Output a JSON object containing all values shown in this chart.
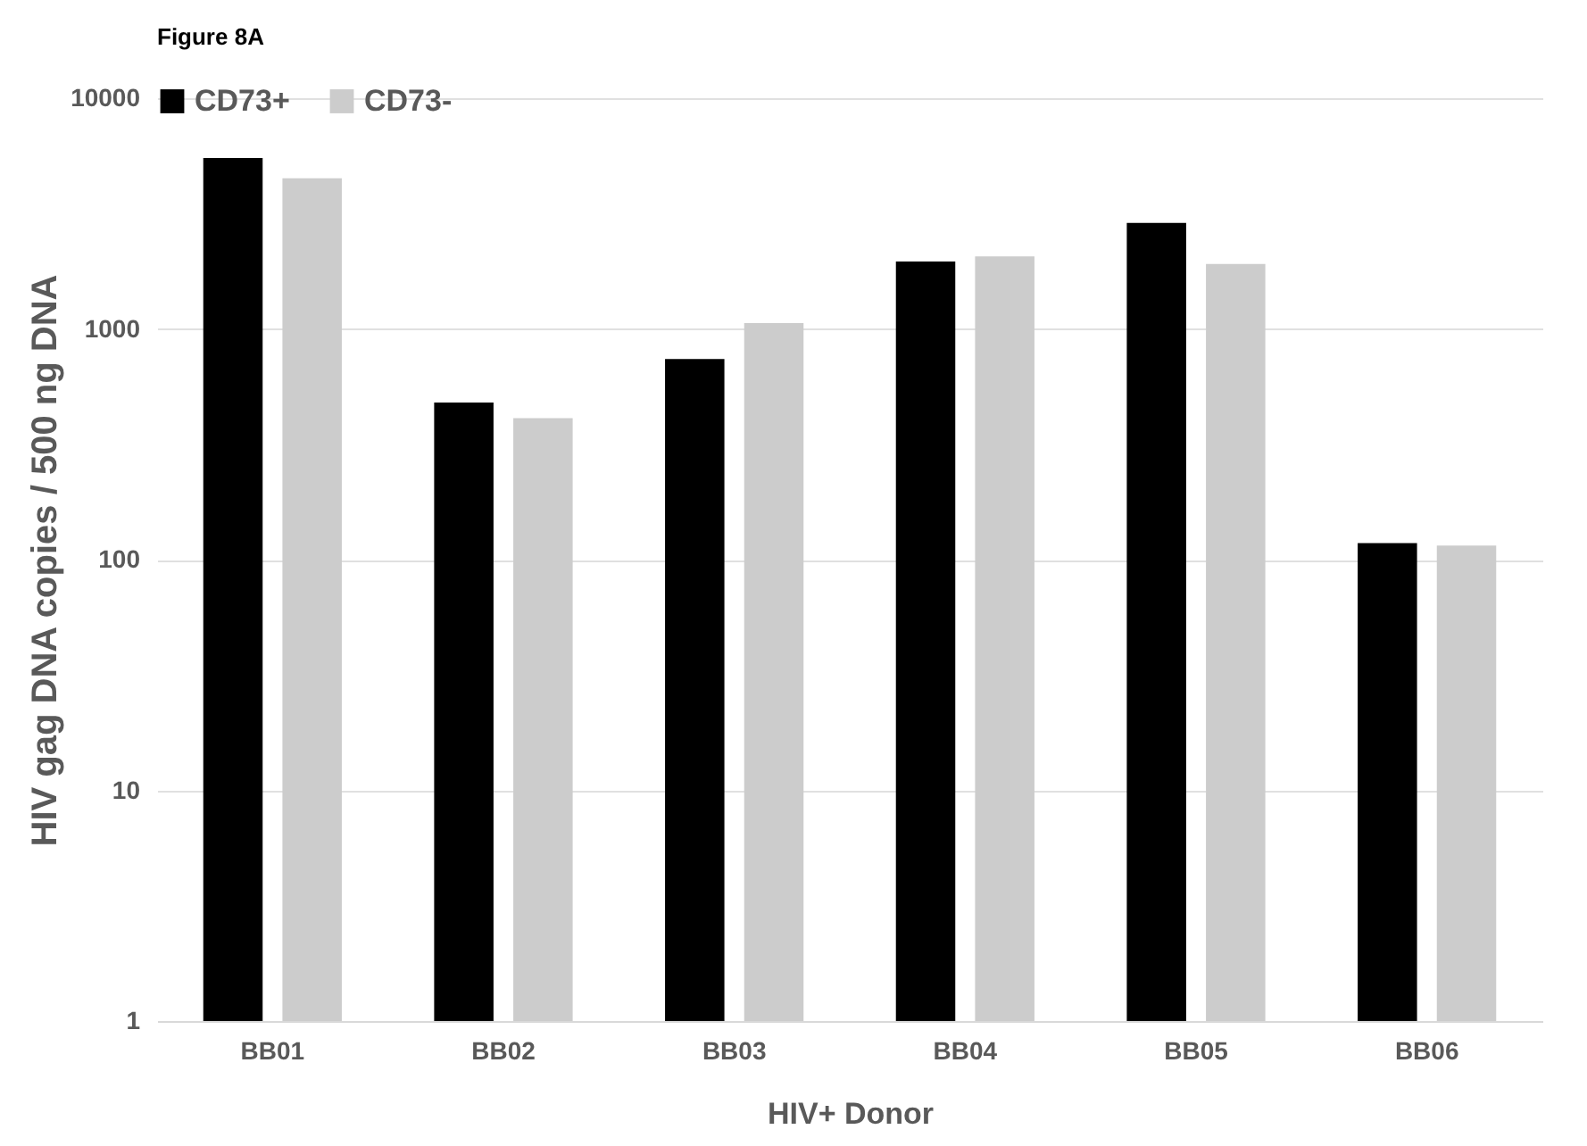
{
  "chart_data": {
    "type": "bar",
    "title": "Figure 8A",
    "xlabel": "HIV+ Donor",
    "ylabel": "HIV gag DNA copies / 500 ng DNA",
    "categories": [
      "BB01",
      "BB02",
      "BB03",
      "BB04",
      "BB05",
      "BB06"
    ],
    "series": [
      {
        "name": "CD73+",
        "color": "#000000",
        "values": [
          5500,
          480,
          740,
          1960,
          2880,
          118
        ]
      },
      {
        "name": "CD73-",
        "color": "#cccccc",
        "values": [
          4500,
          410,
          1060,
          2060,
          1910,
          115
        ]
      }
    ],
    "log": "y",
    "ylim": [
      1,
      10000
    ],
    "yticks": [
      1,
      10,
      100,
      1000,
      10000
    ],
    "grid": "y",
    "legend": "top"
  }
}
